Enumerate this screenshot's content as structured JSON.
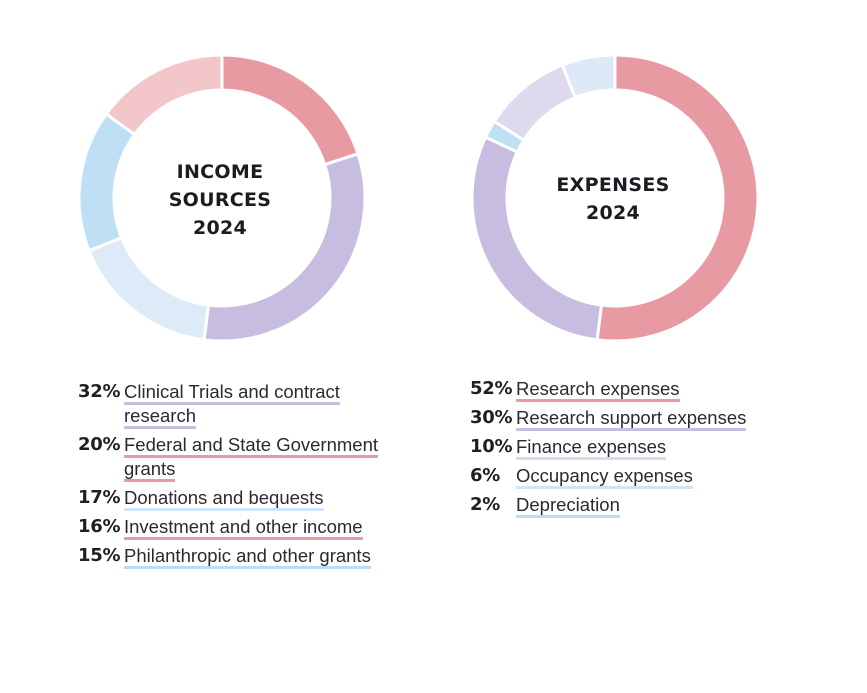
{
  "chart_data": [
    {
      "type": "pie",
      "variant": "donut",
      "title_lines": [
        "INCOME",
        "SOURCES",
        "2024"
      ],
      "categories": [
        "Clinical Trials and contract research",
        "Federal and State Government grants",
        "Donations and bequests",
        "Investment and other income",
        "Philanthropic and other grants"
      ],
      "values": [
        32,
        20,
        17,
        16,
        15
      ],
      "value_labels": [
        "32%",
        "20%",
        "17%",
        "16%",
        "15%"
      ],
      "colors": [
        "#c7bde0",
        "#e89aa2",
        "#ddeaf8",
        "#bfdff5",
        "#f3c6c9"
      ],
      "underline_colors": [
        "#c6bde0",
        "#e89ba3",
        "#cfe4f7",
        "#e89ba3",
        "#bcdcf4"
      ],
      "slice_order_clockwise_from_top": [
        1,
        0,
        2,
        3,
        4
      ]
    },
    {
      "type": "pie",
      "variant": "donut",
      "title_lines": [
        "EXPENSES",
        "2024"
      ],
      "categories": [
        "Research expenses",
        "Research support expenses",
        "Finance expenses",
        "Occupancy expenses",
        "Depreciation"
      ],
      "values": [
        52,
        30,
        10,
        6,
        2
      ],
      "value_labels": [
        "52%",
        "30%",
        "10%",
        "6%",
        "2%"
      ],
      "colors": [
        "#e89aa2",
        "#c7bde0",
        "#dedaee",
        "#dde9f7",
        "#bfdff5"
      ],
      "underline_colors": [
        "#e89ba3",
        "#c6bde0",
        "#ddd8ec",
        "#cfe4f7",
        "#bcdcf4"
      ],
      "slice_order_clockwise_from_top": [
        0,
        1,
        4,
        2,
        3
      ]
    }
  ]
}
